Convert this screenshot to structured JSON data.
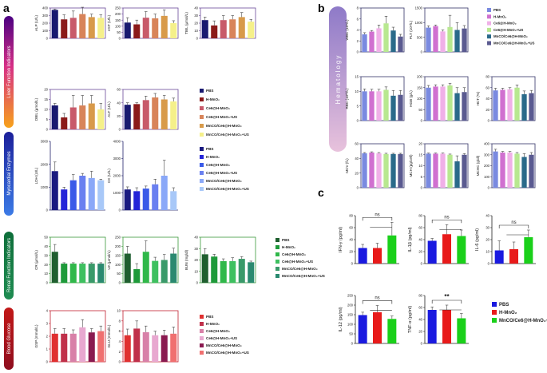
{
  "panel_labels": {
    "a": "a",
    "b": "b",
    "c": "c"
  },
  "groups": {
    "liver": {
      "label": "Liver Function Indicators"
    },
    "myo": {
      "label": "Myocardial Enzymes"
    },
    "renal": {
      "label": "Renal Function Indicators"
    },
    "glucose": {
      "label": "Blood Glucose"
    },
    "hema": {
      "label": "Hematology"
    }
  },
  "legends": {
    "six": [
      "PBS",
      "H-MnO₂",
      "Ce6@H-MnO₂",
      "Ce6@H-MnO₂+US",
      "MnCO/Ce6@H-MnO₂",
      "MnCO/Ce6@H-MnO₂+US"
    ],
    "three": [
      "PBS",
      "H-MnO₂",
      "MnCO/Ce6@H-MnO₂+US"
    ],
    "liver_colors": [
      "#191970",
      "#8B1A1A",
      "#C85A6A",
      "#D8845A",
      "#D89A4A",
      "#F5F08A"
    ],
    "myo_colors": [
      "#1A1A80",
      "#2424D8",
      "#3A5AE8",
      "#6A80F0",
      "#8AA8F8",
      "#A8C8F8"
    ],
    "renal_colors": [
      "#1F5F2F",
      "#1E9A3A",
      "#30B84A",
      "#3EC060",
      "#3A9A6A",
      "#2A8A70"
    ],
    "glucose_colors": [
      "#E03030",
      "#C0304A",
      "#D880A8",
      "#E8A8D0",
      "#8A1A50",
      "#F07070"
    ],
    "hema_colors": [
      "#7A8AE0",
      "#D070D0",
      "#F0B0E8",
      "#B8E890",
      "#2A6A8A",
      "#5A5A90"
    ],
    "c_colors": [
      "#1A1AE0",
      "#E81A1A",
      "#1AD01A"
    ]
  },
  "chart_data": [
    {
      "id": "alp",
      "type": "bar",
      "ylabel": "ALP (U/L)",
      "ylim": [
        0,
        400
      ],
      "yticks": [
        "0",
        "100",
        "200",
        "300",
        "400"
      ],
      "values": [
        375,
        250,
        270,
        320,
        280,
        270
      ],
      "errors": [
        10,
        60,
        90,
        90,
        40,
        40
      ]
    },
    {
      "id": "ast",
      "type": "bar",
      "ylabel": "AST (U/L)",
      "ylim": [
        0,
        250
      ],
      "yticks": [
        "0",
        "50",
        "100",
        "150",
        "200",
        "250"
      ],
      "values": [
        130,
        115,
        170,
        165,
        185,
        125
      ],
      "errors": [
        40,
        35,
        50,
        35,
        50,
        20
      ]
    },
    {
      "id": "tbil",
      "type": "bar",
      "ylabel": "TBIL (μmol/L)",
      "ylim": [
        0,
        40
      ],
      "yticks": [
        "0",
        "10",
        "20",
        "30",
        "40"
      ],
      "values": [
        24,
        17,
        24,
        25,
        28,
        22
      ],
      "errors": [
        4,
        6,
        6,
        5,
        6,
        3
      ]
    },
    {
      "id": "dbil",
      "type": "bar",
      "ylabel": "DBIL (μmol/L)",
      "ylim": [
        0,
        20
      ],
      "yticks": [
        "0",
        "5",
        "10",
        "15",
        "20"
      ],
      "values": [
        12,
        6,
        11,
        12,
        13,
        10
      ],
      "errors": [
        1,
        2,
        6,
        5,
        4,
        3
      ]
    },
    {
      "id": "alt",
      "type": "bar",
      "ylabel": "ALT (U/L)",
      "ylim": [
        0,
        60
      ],
      "yticks": [
        "0",
        "20",
        "40",
        "60"
      ],
      "values": [
        37,
        38,
        44,
        48,
        45,
        42
      ],
      "errors": [
        3,
        2,
        6,
        6,
        6,
        5
      ]
    },
    {
      "id": "ldh",
      "type": "bar",
      "ylabel": "LDH (U/L)",
      "ylim": [
        0,
        3000
      ],
      "yticks": [
        "0",
        "1000",
        "2000",
        "3000"
      ],
      "values": [
        1700,
        900,
        1300,
        1500,
        1400,
        1300
      ],
      "errors": [
        400,
        100,
        250,
        100,
        300,
        50
      ]
    },
    {
      "id": "ck",
      "type": "bar",
      "ylabel": "CK (U/L)",
      "ylim": [
        0,
        4000
      ],
      "yticks": [
        "0",
        "1000",
        "2000",
        "3000",
        "4000"
      ],
      "values": [
        1200,
        1100,
        1250,
        1500,
        2000,
        1100
      ],
      "errors": [
        150,
        200,
        150,
        300,
        900,
        200
      ]
    },
    {
      "id": "cr",
      "type": "bar",
      "ylabel": "CR (μmol/L)",
      "ylim": [
        0,
        50
      ],
      "yticks": [
        "0",
        "10",
        "20",
        "30",
        "40",
        "50"
      ],
      "values": [
        34,
        21,
        21,
        21,
        21,
        21
      ],
      "errors": [
        8,
        1,
        1,
        1,
        1,
        1
      ]
    },
    {
      "id": "ua",
      "type": "bar",
      "ylabel": "UA (μmol/L)",
      "ylim": [
        0,
        250
      ],
      "yticks": [
        "0",
        "50",
        "100",
        "150",
        "200",
        "250"
      ],
      "values": [
        160,
        75,
        170,
        120,
        125,
        160
      ],
      "errors": [
        40,
        30,
        60,
        20,
        30,
        30
      ]
    },
    {
      "id": "bun",
      "type": "bar",
      "ylabel": "BUN (mg/dl)",
      "ylim": [
        0,
        40
      ],
      "yticks": [
        "0",
        "10",
        "20",
        "30",
        "40"
      ],
      "values": [
        25,
        23,
        19,
        19,
        21,
        18
      ],
      "errors": [
        5,
        2,
        2,
        3,
        2,
        1
      ]
    },
    {
      "id": "gsp",
      "type": "bar",
      "ylabel": "GSP (mmol/L)",
      "ylim": [
        0,
        4
      ],
      "yticks": [
        "0",
        "1",
        "2",
        "3",
        "4"
      ],
      "values": [
        2.2,
        2.2,
        2.2,
        2.7,
        2.3,
        2.4
      ],
      "errors": [
        0.4,
        0.4,
        0.3,
        0.6,
        0.3,
        0.4
      ]
    },
    {
      "id": "glu",
      "type": "bar",
      "ylabel": "GLU (mmol/L)",
      "ylim": [
        0,
        10
      ],
      "yticks": [
        "0",
        "2",
        "4",
        "6",
        "8",
        "10"
      ],
      "values": [
        5.2,
        6.5,
        5.8,
        5.2,
        5.2,
        5.5
      ],
      "errors": [
        1.2,
        1.5,
        1.2,
        0.8,
        1.0,
        1.3
      ]
    },
    {
      "id": "wbc",
      "type": "bar",
      "ylabel": "WBC (10⁹/L)",
      "ylim": [
        0,
        8
      ],
      "yticks": [
        "0",
        "2",
        "4",
        "6",
        "8"
      ],
      "values": [
        3.2,
        3.7,
        4.3,
        5.2,
        3.9,
        2.8
      ],
      "errors": [
        0.3,
        0.2,
        0.6,
        1.3,
        0.6,
        0.4
      ]
    },
    {
      "id": "plt",
      "type": "bar",
      "ylabel": "PLT (10⁹/L)",
      "ylim": [
        0,
        1500
      ],
      "yticks": [
        "0",
        "500",
        "1000",
        "1500"
      ],
      "values": [
        830,
        880,
        700,
        850,
        750,
        800
      ],
      "errors": [
        60,
        40,
        50,
        400,
        250,
        100
      ]
    },
    {
      "id": "rbc",
      "type": "bar",
      "ylabel": "RBC (10¹²/L)",
      "ylim": [
        0,
        15
      ],
      "yticks": [
        "0",
        "5",
        "10",
        "15"
      ],
      "values": [
        10,
        10,
        10,
        10.5,
        8.5,
        8.8
      ],
      "errors": [
        0.8,
        0.7,
        0.7,
        1,
        1.8,
        1.5
      ]
    },
    {
      "id": "hgb",
      "type": "bar",
      "ylabel": "HGB (g/L)",
      "ylim": [
        0,
        200
      ],
      "yticks": [
        "0",
        "50",
        "100",
        "150",
        "200"
      ],
      "values": [
        150,
        155,
        155,
        160,
        125,
        130
      ],
      "errors": [
        10,
        8,
        8,
        10,
        25,
        20
      ]
    },
    {
      "id": "hct",
      "type": "bar",
      "ylabel": "HCT (%)",
      "ylim": [
        0,
        80
      ],
      "yticks": [
        "0",
        "20",
        "40",
        "60",
        "80"
      ],
      "values": [
        55,
        56,
        57,
        60,
        48,
        50
      ],
      "errors": [
        4,
        3,
        3,
        5,
        6,
        5
      ]
    },
    {
      "id": "mcv",
      "type": "bar",
      "ylabel": "MCV (fL)",
      "ylim": [
        0,
        60
      ],
      "yticks": [
        "0",
        "20",
        "40",
        "60"
      ],
      "values": [
        47,
        48,
        47,
        46,
        46,
        46
      ],
      "errors": [
        1,
        1,
        1,
        1,
        1,
        1
      ]
    },
    {
      "id": "mch",
      "type": "bar",
      "ylabel": "MCH (pg/cell)",
      "ylim": [
        0,
        20
      ],
      "yticks": [
        "0",
        "5",
        "10",
        "15",
        "20"
      ],
      "values": [
        15.5,
        15.5,
        15.5,
        15,
        12,
        15
      ],
      "errors": [
        0.3,
        0.3,
        0.3,
        0.3,
        2.5,
        0.5
      ]
    },
    {
      "id": "mchc",
      "type": "bar",
      "ylabel": "MCHC (g/dl)",
      "ylim": [
        0,
        400
      ],
      "yticks": [
        "0",
        "100",
        "200",
        "300",
        "400"
      ],
      "values": [
        330,
        320,
        320,
        310,
        280,
        300
      ],
      "errors": [
        20,
        10,
        10,
        10,
        30,
        20
      ]
    },
    {
      "id": "ifn",
      "type": "bar",
      "ylabel": "IFN-γ (pg/ml)",
      "ylim": [
        0,
        80
      ],
      "yticks": [
        "0",
        "20",
        "40",
        "60",
        "80"
      ],
      "values": [
        26,
        26,
        47
      ],
      "errors": [
        6,
        8,
        22
      ],
      "annotation": "ns"
    },
    {
      "id": "il1b",
      "type": "bar",
      "ylabel": "IL-1β (pg/ml)",
      "ylim": [
        0,
        80
      ],
      "yticks": [
        "0",
        "20",
        "40",
        "60",
        "80"
      ],
      "values": [
        38,
        49,
        46
      ],
      "errors": [
        4,
        16,
        10
      ],
      "annotation": "ns"
    },
    {
      "id": "il6",
      "type": "bar",
      "ylabel": "IL-6 (pg/ml)",
      "ylim": [
        0,
        40
      ],
      "yticks": [
        "0",
        "10",
        "20",
        "30",
        "40"
      ],
      "values": [
        11,
        12,
        22
      ],
      "errors": [
        8,
        6,
        6
      ],
      "annotation": "ns"
    },
    {
      "id": "il12",
      "type": "bar",
      "ylabel": "IL-12 (pg/ml)",
      "ylim": [
        0,
        250
      ],
      "yticks": [
        "0",
        "50",
        "100",
        "150",
        "200",
        "250"
      ],
      "values": [
        148,
        163,
        128
      ],
      "errors": [
        15,
        35,
        15
      ],
      "annotation": "ns"
    },
    {
      "id": "tnf",
      "type": "bar",
      "ylabel": "TNF-α (pg/ml)",
      "ylim": [
        0,
        80
      ],
      "yticks": [
        "0",
        "20",
        "40",
        "60",
        "80"
      ],
      "values": [
        56,
        56,
        42
      ],
      "errors": [
        5,
        8,
        8
      ],
      "annotation": "**"
    }
  ]
}
